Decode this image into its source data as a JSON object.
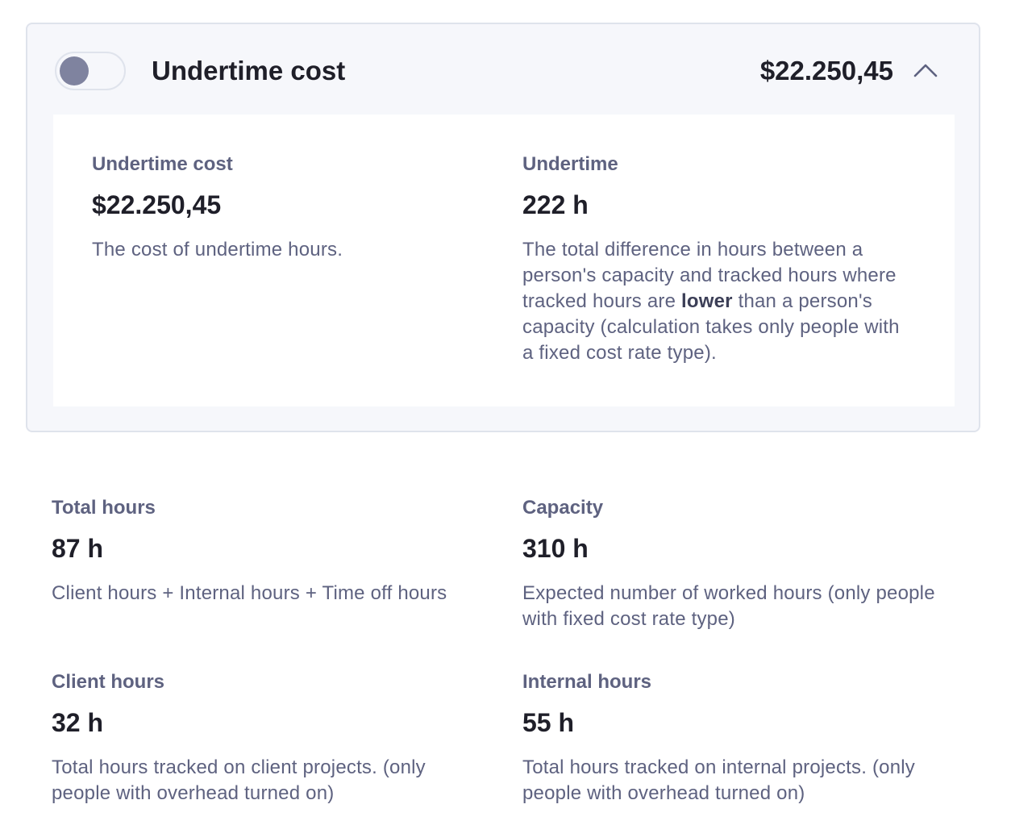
{
  "card": {
    "title": "Undertime cost",
    "amount": "$22.250,45",
    "toggle_state": "off",
    "metrics": [
      {
        "label": "Undertime cost",
        "value": "$22.250,45",
        "description": "The cost of undertime hours."
      },
      {
        "label": "Undertime",
        "value": "222 h",
        "description_before": "The total difference in hours between a person's capacity and tracked hours where tracked hours are ",
        "description_bold": "lower",
        "description_after": " than a person's capacity (calculation takes only people with a fixed cost rate type)."
      }
    ]
  },
  "metrics": [
    {
      "label": "Total hours",
      "value": "87 h",
      "description": "Client hours + Internal hours + Time off hours"
    },
    {
      "label": "Capacity",
      "value": "310 h",
      "description": "Expected number of worked hours (only people with fixed cost rate type)"
    },
    {
      "label": "Client hours",
      "value": "32 h",
      "description": "Total hours tracked on client projects. (only people with overhead turned on)"
    },
    {
      "label": "Internal hours",
      "value": "55 h",
      "description": "Total hours tracked on internal projects. (only people with overhead turned on)"
    }
  ],
  "colors": {
    "knob": "#7f839f",
    "card_bg": "#f6f7fb",
    "muted_text": "#5e6280",
    "primary_text": "#1f1f29"
  },
  "icons": {
    "collapse": "chevron-up-icon"
  }
}
